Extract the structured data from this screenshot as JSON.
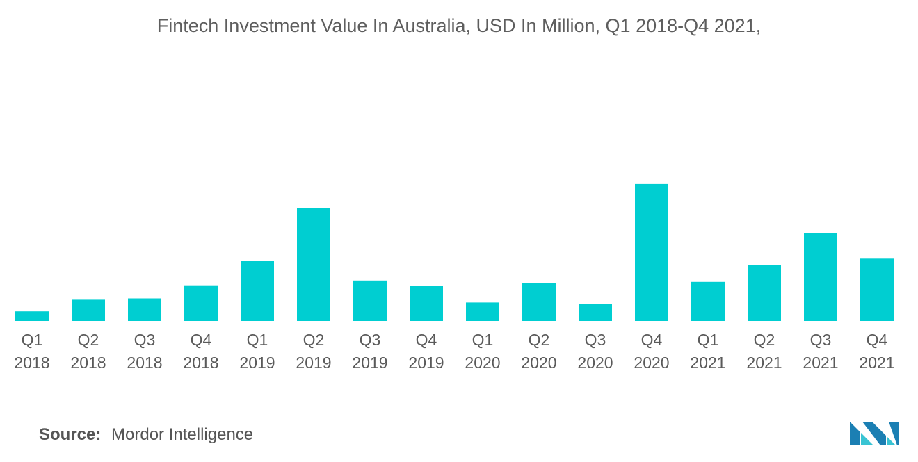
{
  "chart_data": {
    "type": "bar",
    "title": "Fintech Investment Value In Australia, USD In Million, Q1 2018-Q4 2021,",
    "xlabel": "",
    "ylabel": "",
    "categories": [
      [
        "Q1",
        "2018"
      ],
      [
        "Q2",
        "2018"
      ],
      [
        "Q3",
        "2018"
      ],
      [
        "Q4",
        "2018"
      ],
      [
        "Q1",
        "2019"
      ],
      [
        "Q2",
        "2019"
      ],
      [
        "Q3",
        "2019"
      ],
      [
        "Q4",
        "2019"
      ],
      [
        "Q1",
        "2020"
      ],
      [
        "Q2",
        "2020"
      ],
      [
        "Q3",
        "2020"
      ],
      [
        "Q4",
        "2020"
      ],
      [
        "Q1",
        "2021"
      ],
      [
        "Q2",
        "2021"
      ],
      [
        "Q3",
        "2021"
      ],
      [
        "Q4",
        "2021"
      ]
    ],
    "values": [
      14,
      31,
      33,
      52,
      88,
      165,
      59,
      51,
      27,
      55,
      25,
      200,
      57,
      82,
      128,
      91
    ],
    "ylim": [
      0,
      210
    ],
    "grid": false,
    "legend": "none",
    "bar_color": "#00CED1"
  },
  "footer": {
    "source_label": "Source:",
    "source_value": "Mordor Intelligence"
  },
  "logo": {
    "icon": "mordor-intelligence-logo-icon",
    "colors": [
      "#1b7fb3",
      "#39c4d3"
    ]
  }
}
